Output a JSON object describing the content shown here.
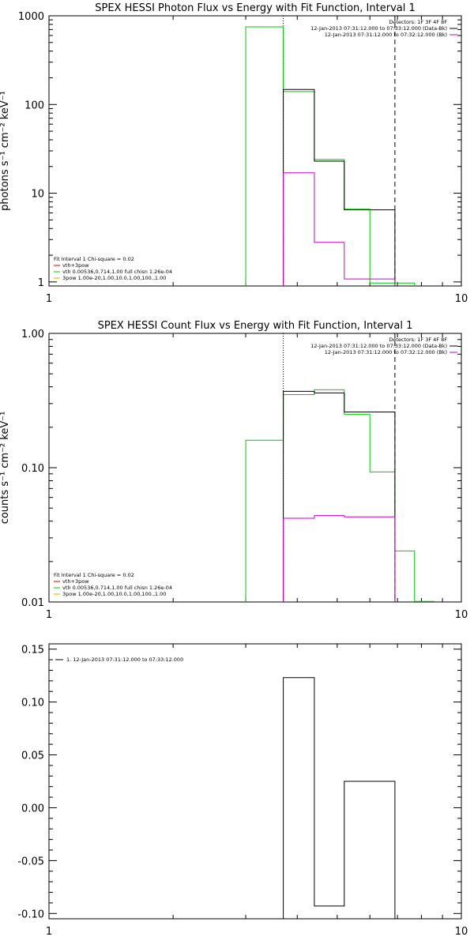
{
  "colors": {
    "black": "#000000",
    "green": "#00cc00",
    "magenta": "#cc00cc",
    "red": "#cc0000",
    "orange": "#ff9900"
  },
  "chart_data": [
    {
      "type": "line",
      "title": "SPEX HESSI Photon Flux vs Energy with Fit Function, Interval 1",
      "ylabel": "photons s⁻¹ cm⁻² keV⁻¹",
      "xscale": "log",
      "yscale": "log",
      "xlim": [
        1,
        10
      ],
      "ylim": [
        0.9,
        1000
      ],
      "xticks": [
        1,
        10
      ],
      "xtick_labels": [
        "1",
        "10"
      ],
      "yticks": [
        1,
        10,
        100,
        1000
      ],
      "ytick_labels": [
        "1",
        "10",
        "100",
        "1000"
      ],
      "vlines": [
        {
          "x": 3.7,
          "style": "dotted"
        },
        {
          "x": 6.9,
          "style": "dashed"
        }
      ],
      "legend_top": [
        {
          "text": "Detectors: 1F 3F 4F 8F",
          "color": "#000000"
        },
        {
          "text": "12-Jan-2013 07:31:12.000 to 07:33:12.000 (Data-Bk)",
          "color": "#000000"
        },
        {
          "text": "12-Jan-2013 07:31:12.000 to 07:32:12.000 (Bk)",
          "color": "#cc00cc"
        }
      ],
      "legend_bottom": [
        {
          "text": "Fit Interval 1   Chi-square = 0.02",
          "color": "#000000"
        },
        {
          "text": "vth+3pow",
          "color": "#cc0000"
        },
        {
          "text": "vth 0.00536,0.714,1.00   full chisn 1.26e-04",
          "color": "#00cc00"
        },
        {
          "text": "3pow 1.00e-20,1.00,10.0,1.00,100.,1.00",
          "color": "#ff9900"
        }
      ],
      "series": [
        {
          "color": "#00cc00",
          "edges": [
            3.0,
            3.7,
            4.4,
            5.2,
            6.0,
            6.9,
            7.7
          ],
          "values": [
            750,
            140,
            24,
            6.6,
            0.97,
            0.97
          ]
        },
        {
          "color": "#000000",
          "edges": [
            3.7,
            4.4,
            5.2,
            6.0,
            6.9
          ],
          "values": [
            148,
            23,
            6.5,
            6.5
          ]
        },
        {
          "color": "#cc00cc",
          "edges": [
            3.7,
            4.4,
            5.2,
            6.0,
            6.9
          ],
          "values": [
            17,
            2.8,
            1.08,
            1.08
          ]
        }
      ]
    },
    {
      "type": "line",
      "title": "SPEX HESSI Count Flux vs Energy with Fit Function, Interval 1",
      "ylabel": "counts s⁻¹ cm⁻² keV⁻¹",
      "xscale": "log",
      "yscale": "log",
      "xlim": [
        1,
        10
      ],
      "ylim": [
        0.01,
        1.0
      ],
      "xticks": [
        1,
        10
      ],
      "xtick_labels": [
        "1",
        "10"
      ],
      "yticks": [
        0.01,
        0.1,
        1.0
      ],
      "ytick_labels": [
        "0.01",
        "0.10",
        "1.00"
      ],
      "vlines": [
        {
          "x": 3.7,
          "style": "dotted"
        },
        {
          "x": 6.9,
          "style": "dashed"
        }
      ],
      "legend_top": [
        {
          "text": "Detectors: 1F 3F 4F 8F",
          "color": "#000000"
        },
        {
          "text": "12-Jan-2013 07:31:12.000 to 07:33:12.000 (Data-Bk)",
          "color": "#000000"
        },
        {
          "text": "12-Jan-2013 07:31:12.000 to 07:32:12.000 (Bk)",
          "color": "#cc00cc"
        }
      ],
      "legend_bottom": [
        {
          "text": "Fit Interval 1   Chi-square = 0.02",
          "color": "#000000"
        },
        {
          "text": "vth+3pow",
          "color": "#cc0000"
        },
        {
          "text": "vth 0.00536,0.714,1.00   full chisn 1.26e-04",
          "color": "#00cc00"
        },
        {
          "text": "3pow 1.00e-20,1.00,10.0,1.00,100.,1.00",
          "color": "#ff9900"
        }
      ],
      "series": [
        {
          "color": "#00cc00",
          "edges": [
            3.0,
            3.7,
            4.4,
            5.2,
            6.0,
            6.9,
            7.7,
            8.6
          ],
          "values": [
            0.16,
            0.35,
            0.38,
            0.25,
            0.093,
            0.024,
            0.0101
          ]
        },
        {
          "color": "#000000",
          "edges": [
            3.7,
            4.4,
            5.2,
            6.0,
            6.9
          ],
          "values": [
            0.37,
            0.36,
            0.26,
            0.26
          ]
        },
        {
          "color": "#cc00cc",
          "edges": [
            3.7,
            4.4,
            5.2,
            6.0,
            6.9
          ],
          "values": [
            0.042,
            0.044,
            0.043,
            0.043
          ]
        }
      ]
    },
    {
      "type": "line",
      "title": "",
      "ylabel": "",
      "xscale": "log",
      "yscale": "linear",
      "xlim": [
        1,
        10
      ],
      "ylim": [
        -0.105,
        0.155
      ],
      "xticks": [
        1,
        10
      ],
      "xtick_labels": [
        "1",
        "10"
      ],
      "yticks": [
        -0.1,
        -0.05,
        0.0,
        0.05,
        0.1,
        0.15
      ],
      "ytick_labels": [
        "-0.10",
        "-0.05",
        "0.00",
        "0.05",
        "0.10",
        "0.15"
      ],
      "vlines": [],
      "legend_top": [
        {
          "text": "1. 12-Jan-2013 07:31:12.000 to 07:33:12.000",
          "color": "#000000"
        }
      ],
      "legend_bottom": [],
      "series": [
        {
          "color": "#000000",
          "edges": [
            3.7,
            4.4,
            5.2,
            6.0,
            6.9
          ],
          "values": [
            0.123,
            -0.093,
            0.025,
            0.025
          ],
          "baseline": -0.105
        }
      ]
    }
  ]
}
